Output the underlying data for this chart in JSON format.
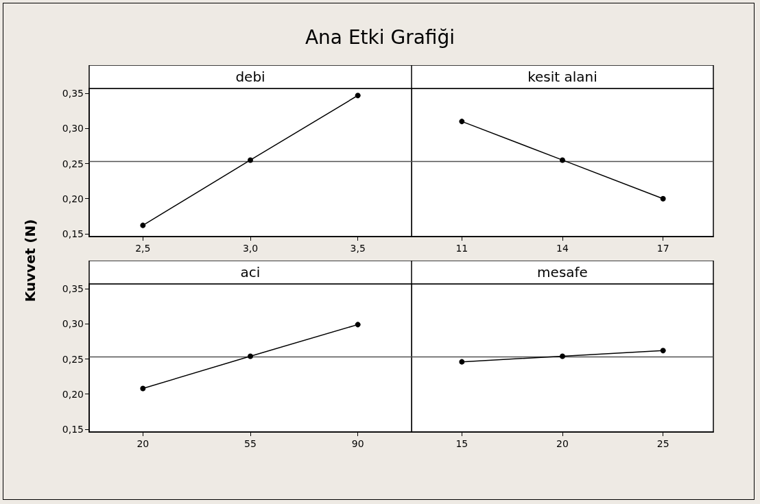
{
  "chart_data": [
    {
      "type": "line",
      "title": "debi",
      "annotations": [
        "Ana Etki Grafiği"
      ],
      "ylabel": "Kuvvet (N)",
      "categories": [
        "2,5",
        "3,0",
        "3,5"
      ],
      "values": [
        0.162,
        0.255,
        0.347
      ],
      "color": "#000000",
      "marker": "circle",
      "line_style": "solid",
      "ylim": [
        0.146,
        0.357
      ],
      "yticks": [
        {
          "value": 0.15,
          "label": "0,15"
        },
        {
          "value": 0.2,
          "label": "0,20"
        },
        {
          "value": 0.25,
          "label": "0,25"
        },
        {
          "value": 0.3,
          "label": "0,30"
        },
        {
          "value": 0.35,
          "label": "0,35"
        }
      ],
      "ref_lines": [
        {
          "axis": "y",
          "value": 0.253,
          "color": "#505050"
        }
      ]
    },
    {
      "type": "line",
      "title": "kesit alani",
      "categories": [
        "11",
        "14",
        "17"
      ],
      "values": [
        0.31,
        0.255,
        0.2
      ],
      "color": "#000000",
      "marker": "circle",
      "line_style": "solid",
      "ylim": [
        0.146,
        0.357
      ],
      "tick_labels": "x",
      "ref_lines": [
        {
          "axis": "y",
          "value": 0.253,
          "color": "#505050"
        }
      ]
    },
    {
      "type": "line",
      "title": "aci",
      "categories": [
        "20",
        "55",
        "90"
      ],
      "values": [
        0.208,
        0.254,
        0.299
      ],
      "color": "#000000",
      "marker": "circle",
      "line_style": "solid",
      "ylim": [
        0.146,
        0.357
      ],
      "yticks": [
        {
          "value": 0.15,
          "label": "0,15"
        },
        {
          "value": 0.2,
          "label": "0,20"
        },
        {
          "value": 0.25,
          "label": "0,25"
        },
        {
          "value": 0.3,
          "label": "0,30"
        },
        {
          "value": 0.35,
          "label": "0,35"
        }
      ],
      "ref_lines": [
        {
          "axis": "y",
          "value": 0.253,
          "color": "#505050"
        }
      ]
    },
    {
      "type": "line",
      "title": "mesafe",
      "categories": [
        "15",
        "20",
        "25"
      ],
      "values": [
        0.246,
        0.254,
        0.262
      ],
      "color": "#000000",
      "marker": "circle",
      "line_style": "solid",
      "ylim": [
        0.146,
        0.357
      ],
      "tick_labels": "x",
      "ref_lines": [
        {
          "axis": "y",
          "value": 0.253,
          "color": "#505050"
        }
      ]
    }
  ]
}
